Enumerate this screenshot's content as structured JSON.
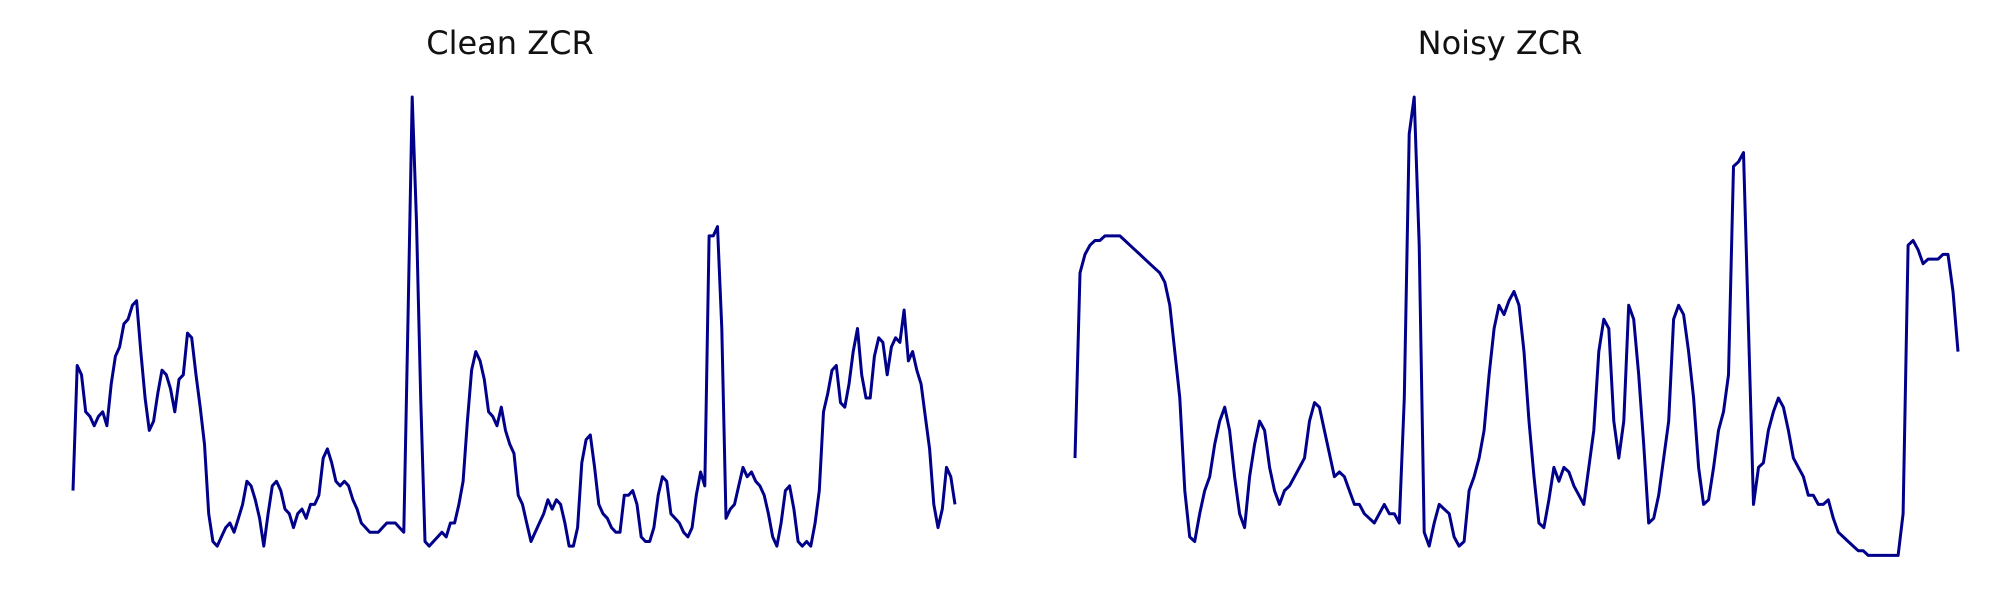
{
  "line_color": "#00008b",
  "chart_data": [
    {
      "type": "line",
      "title": "Clean ZCR",
      "axes": "off",
      "grid": false,
      "ylim": [
        0,
        1
      ],
      "series": [
        {
          "values": [
            0.15,
            0.42,
            0.4,
            0.32,
            0.31,
            0.29,
            0.31,
            0.32,
            0.29,
            0.38,
            0.44,
            0.46,
            0.51,
            0.52,
            0.55,
            0.56,
            0.45,
            0.35,
            0.28,
            0.3,
            0.36,
            0.41,
            0.4,
            0.37,
            0.32,
            0.39,
            0.4,
            0.49,
            0.48,
            0.4,
            0.33,
            0.25,
            0.1,
            0.04,
            0.03,
            0.05,
            0.07,
            0.08,
            0.06,
            0.09,
            0.12,
            0.17,
            0.16,
            0.13,
            0.09,
            0.03,
            0.1,
            0.16,
            0.17,
            0.15,
            0.11,
            0.1,
            0.07,
            0.1,
            0.11,
            0.09,
            0.12,
            0.12,
            0.14,
            0.22,
            0.24,
            0.21,
            0.17,
            0.16,
            0.17,
            0.16,
            0.13,
            0.11,
            0.08,
            0.07,
            0.06,
            0.06,
            0.06,
            0.07,
            0.08,
            0.08,
            0.08,
            0.07,
            0.06,
            0.52,
            1.0,
            0.73,
            0.35,
            0.04,
            0.03,
            0.04,
            0.05,
            0.06,
            0.05,
            0.08,
            0.08,
            0.12,
            0.17,
            0.3,
            0.41,
            0.45,
            0.43,
            0.39,
            0.32,
            0.31,
            0.29,
            0.33,
            0.28,
            0.25,
            0.23,
            0.14,
            0.12,
            0.08,
            0.04,
            0.06,
            0.08,
            0.1,
            0.13,
            0.11,
            0.13,
            0.12,
            0.08,
            0.03,
            0.03,
            0.07,
            0.21,
            0.26,
            0.27,
            0.2,
            0.12,
            0.1,
            0.09,
            0.07,
            0.06,
            0.06,
            0.14,
            0.14,
            0.15,
            0.12,
            0.05,
            0.04,
            0.04,
            0.07,
            0.14,
            0.18,
            0.17,
            0.1,
            0.09,
            0.08,
            0.06,
            0.05,
            0.07,
            0.14,
            0.19,
            0.16,
            0.7,
            0.7,
            0.72,
            0.5,
            0.09,
            0.11,
            0.12,
            0.16,
            0.2,
            0.18,
            0.19,
            0.17,
            0.16,
            0.14,
            0.1,
            0.05,
            0.03,
            0.08,
            0.15,
            0.16,
            0.11,
            0.04,
            0.03,
            0.04,
            0.03,
            0.08,
            0.15,
            0.32,
            0.36,
            0.41,
            0.42,
            0.34,
            0.33,
            0.38,
            0.45,
            0.5,
            0.4,
            0.35,
            0.35,
            0.44,
            0.48,
            0.47,
            0.4,
            0.46,
            0.48,
            0.47,
            0.54,
            0.43,
            0.45,
            0.41,
            0.38,
            0.31,
            0.24,
            0.12,
            0.07,
            0.11,
            0.2,
            0.18,
            0.12
          ]
        }
      ]
    },
    {
      "type": "line",
      "title": "Noisy ZCR",
      "axes": "off",
      "grid": false,
      "ylim": [
        0,
        1
      ],
      "series": [
        {
          "values": [
            0.22,
            0.62,
            0.66,
            0.68,
            0.69,
            0.69,
            0.7,
            0.7,
            0.7,
            0.7,
            0.69,
            0.68,
            0.67,
            0.66,
            0.65,
            0.64,
            0.63,
            0.62,
            0.6,
            0.55,
            0.45,
            0.35,
            0.15,
            0.05,
            0.04,
            0.1,
            0.15,
            0.18,
            0.25,
            0.3,
            0.33,
            0.28,
            0.18,
            0.1,
            0.07,
            0.18,
            0.25,
            0.3,
            0.28,
            0.2,
            0.15,
            0.12,
            0.15,
            0.16,
            0.18,
            0.2,
            0.22,
            0.3,
            0.34,
            0.33,
            0.28,
            0.23,
            0.18,
            0.19,
            0.18,
            0.15,
            0.12,
            0.12,
            0.1,
            0.09,
            0.08,
            0.1,
            0.12,
            0.1,
            0.1,
            0.08,
            0.35,
            0.92,
            1.0,
            0.68,
            0.06,
            0.03,
            0.08,
            0.12,
            0.11,
            0.1,
            0.05,
            0.03,
            0.04,
            0.15,
            0.18,
            0.22,
            0.28,
            0.4,
            0.5,
            0.55,
            0.53,
            0.56,
            0.58,
            0.55,
            0.45,
            0.3,
            0.18,
            0.08,
            0.07,
            0.13,
            0.2,
            0.17,
            0.2,
            0.19,
            0.16,
            0.14,
            0.12,
            0.2,
            0.28,
            0.45,
            0.52,
            0.5,
            0.3,
            0.22,
            0.3,
            0.55,
            0.52,
            0.4,
            0.25,
            0.08,
            0.09,
            0.14,
            0.22,
            0.3,
            0.52,
            0.55,
            0.53,
            0.45,
            0.35,
            0.2,
            0.12,
            0.13,
            0.2,
            0.28,
            0.32,
            0.4,
            0.85,
            0.86,
            0.88,
            0.5,
            0.12,
            0.2,
            0.21,
            0.28,
            0.32,
            0.35,
            0.33,
            0.28,
            0.22,
            0.2,
            0.18,
            0.14,
            0.14,
            0.12,
            0.12,
            0.13,
            0.09,
            0.06,
            0.05,
            0.04,
            0.03,
            0.02,
            0.02,
            0.01,
            0.01,
            0.01,
            0.01,
            0.01,
            0.01,
            0.01,
            0.1,
            0.68,
            0.69,
            0.67,
            0.64,
            0.65,
            0.65,
            0.65,
            0.66,
            0.66,
            0.58,
            0.45
          ]
        }
      ]
    }
  ]
}
